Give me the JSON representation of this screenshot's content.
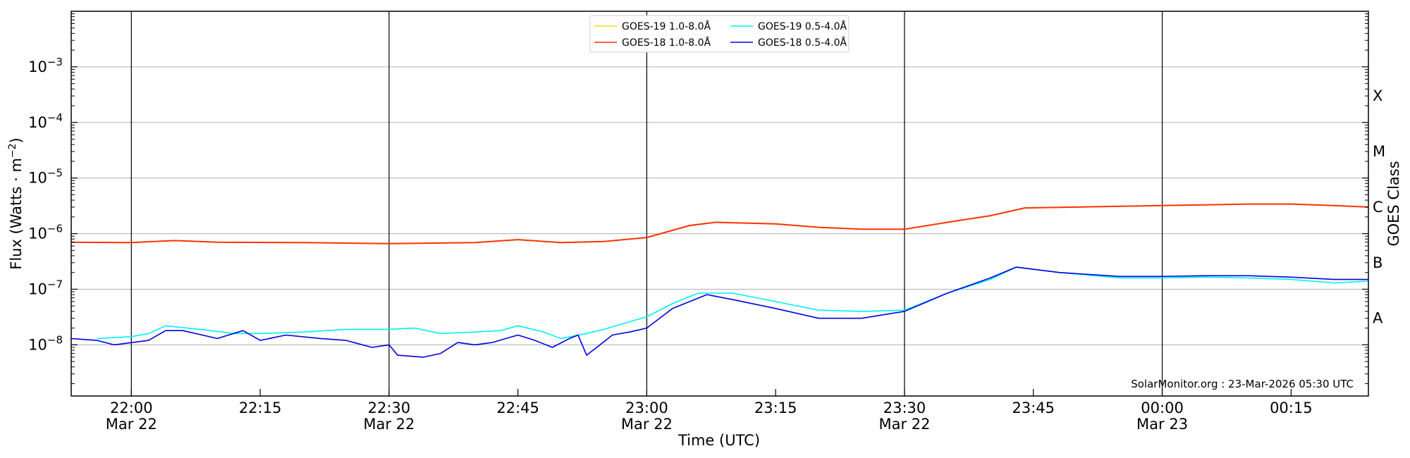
{
  "chart_data": {
    "type": "line",
    "xlabel": "Time (UTC)",
    "ylabel_main": "Flux (Watts · m",
    "ylabel_exp": "−2",
    "ylabel_close": ")",
    "y2label": "GOES Class",
    "yscale": "log",
    "ylim": [
      1.2e-09,
      0.01
    ],
    "xlim": [
      "2026-03-22T21:53",
      "2026-03-23T00:24"
    ],
    "y_ticks": [
      {
        "value": 1e-08,
        "base": "10",
        "exp": "−8"
      },
      {
        "value": 1e-07,
        "base": "10",
        "exp": "−7"
      },
      {
        "value": 1e-06,
        "base": "10",
        "exp": "−6"
      },
      {
        "value": 1e-05,
        "base": "10",
        "exp": "−5"
      },
      {
        "value": 0.0001,
        "base": "10",
        "exp": "−4"
      },
      {
        "value": 0.001,
        "base": "10",
        "exp": "−3"
      }
    ],
    "x_ticks": [
      {
        "time": "2026-03-22T22:00",
        "label": "22:00",
        "sublabel": "Mar 22",
        "major": true
      },
      {
        "time": "2026-03-22T22:15",
        "label": "22:15",
        "sublabel": "",
        "major": false
      },
      {
        "time": "2026-03-22T22:30",
        "label": "22:30",
        "sublabel": "Mar 22",
        "major": true
      },
      {
        "time": "2026-03-22T22:45",
        "label": "22:45",
        "sublabel": "",
        "major": false
      },
      {
        "time": "2026-03-22T23:00",
        "label": "23:00",
        "sublabel": "Mar 22",
        "major": true
      },
      {
        "time": "2026-03-22T23:15",
        "label": "23:15",
        "sublabel": "",
        "major": false
      },
      {
        "time": "2026-03-22T23:30",
        "label": "23:30",
        "sublabel": "Mar 22",
        "major": true
      },
      {
        "time": "2026-03-22T23:45",
        "label": "23:45",
        "sublabel": "",
        "major": false
      },
      {
        "time": "2026-03-23T00:00",
        "label": "00:00",
        "sublabel": "Mar 23",
        "major": true
      },
      {
        "time": "2026-03-23T00:15",
        "label": "00:15",
        "sublabel": "",
        "major": false
      }
    ],
    "goes_classes": [
      {
        "label": "A",
        "value": 3e-08
      },
      {
        "label": "B",
        "value": 3e-07
      },
      {
        "label": "C",
        "value": 3e-06
      },
      {
        "label": "M",
        "value": 3e-05
      },
      {
        "label": "X",
        "value": 0.0003
      }
    ],
    "grid": true,
    "legend_position": "top-center",
    "credit": "SolarMonitor.org : 23-Mar-2026 05:30 UTC",
    "series": [
      {
        "name": "GOES-19 1.0-8.0Å",
        "color": "#ffd700",
        "x": [
          "2026-03-22T21:53",
          "2026-03-22T22:00",
          "2026-03-22T22:05",
          "2026-03-22T22:10",
          "2026-03-22T22:20",
          "2026-03-22T22:30",
          "2026-03-22T22:40",
          "2026-03-22T22:45",
          "2026-03-22T22:50",
          "2026-03-22T22:55",
          "2026-03-22T23:00",
          "2026-03-22T23:05",
          "2026-03-22T23:08",
          "2026-03-22T23:15",
          "2026-03-22T23:20",
          "2026-03-22T23:25",
          "2026-03-22T23:30",
          "2026-03-22T23:35",
          "2026-03-22T23:40",
          "2026-03-22T23:44",
          "2026-03-22T23:50",
          "2026-03-22T23:55",
          "2026-03-23T00:00",
          "2026-03-23T00:05",
          "2026-03-23T00:10",
          "2026-03-23T00:15",
          "2026-03-23T00:20",
          "2026-03-23T00:24"
        ],
        "values": [
          7e-07,
          6.9e-07,
          7.5e-07,
          7e-07,
          6.9e-07,
          6.6e-07,
          6.9e-07,
          7.8e-07,
          6.9e-07,
          7.2e-07,
          8.5e-07,
          1.4e-06,
          1.6e-06,
          1.5e-06,
          1.3e-06,
          1.2e-06,
          1.2e-06,
          1.6e-06,
          2.1e-06,
          2.9e-06,
          3e-06,
          3.1e-06,
          3.2e-06,
          3.3e-06,
          3.4e-06,
          3.4e-06,
          3.2e-06,
          3e-06
        ]
      },
      {
        "name": "GOES-18 1.0-8.0Å",
        "color": "#ff3300",
        "x": [
          "2026-03-22T21:53",
          "2026-03-22T22:00",
          "2026-03-22T22:05",
          "2026-03-22T22:10",
          "2026-03-22T22:20",
          "2026-03-22T22:30",
          "2026-03-22T22:40",
          "2026-03-22T22:45",
          "2026-03-22T22:50",
          "2026-03-22T22:55",
          "2026-03-22T23:00",
          "2026-03-22T23:05",
          "2026-03-22T23:08",
          "2026-03-22T23:15",
          "2026-03-22T23:20",
          "2026-03-22T23:25",
          "2026-03-22T23:30",
          "2026-03-22T23:35",
          "2026-03-22T23:40",
          "2026-03-22T23:44",
          "2026-03-22T23:50",
          "2026-03-22T23:55",
          "2026-03-23T00:00",
          "2026-03-23T00:05",
          "2026-03-23T00:10",
          "2026-03-23T00:15",
          "2026-03-23T00:20",
          "2026-03-23T00:24"
        ],
        "values": [
          7e-07,
          6.9e-07,
          7.5e-07,
          7e-07,
          6.9e-07,
          6.6e-07,
          6.9e-07,
          7.8e-07,
          6.9e-07,
          7.2e-07,
          8.5e-07,
          1.4e-06,
          1.6e-06,
          1.5e-06,
          1.3e-06,
          1.2e-06,
          1.2e-06,
          1.6e-06,
          2.1e-06,
          2.9e-06,
          3e-06,
          3.1e-06,
          3.2e-06,
          3.3e-06,
          3.4e-06,
          3.4e-06,
          3.2e-06,
          3e-06
        ]
      },
      {
        "name": "GOES-19 0.5-4.0Å",
        "color": "#00f0f0",
        "x": [
          "2026-03-22T21:56",
          "2026-03-22T22:00",
          "2026-03-22T22:02",
          "2026-03-22T22:04",
          "2026-03-22T22:08",
          "2026-03-22T22:12",
          "2026-03-22T22:15",
          "2026-03-22T22:20",
          "2026-03-22T22:25",
          "2026-03-22T22:30",
          "2026-03-22T22:33",
          "2026-03-22T22:36",
          "2026-03-22T22:40",
          "2026-03-22T22:43",
          "2026-03-22T22:45",
          "2026-03-22T22:48",
          "2026-03-22T22:50",
          "2026-03-22T22:53",
          "2026-03-22T22:55",
          "2026-03-22T23:00",
          "2026-03-22T23:03",
          "2026-03-22T23:06",
          "2026-03-22T23:10",
          "2026-03-22T23:15",
          "2026-03-22T23:20",
          "2026-03-22T23:25",
          "2026-03-22T23:30",
          "2026-03-22T23:35",
          "2026-03-22T23:40",
          "2026-03-22T23:43",
          "2026-03-22T23:48",
          "2026-03-22T23:55",
          "2026-03-23T00:00",
          "2026-03-23T00:05",
          "2026-03-23T00:10",
          "2026-03-23T00:15",
          "2026-03-23T00:20",
          "2026-03-23T00:24"
        ],
        "values": [
          1.3e-08,
          1.4e-08,
          1.6e-08,
          2.2e-08,
          1.9e-08,
          1.6e-08,
          1.6e-08,
          1.7e-08,
          1.9e-08,
          1.9e-08,
          2e-08,
          1.6e-08,
          1.7e-08,
          1.8e-08,
          2.2e-08,
          1.7e-08,
          1.3e-08,
          1.6e-08,
          1.9e-08,
          3.2e-08,
          5.5e-08,
          8.5e-08,
          8.5e-08,
          6e-08,
          4.2e-08,
          4e-08,
          4.2e-08,
          8.5e-08,
          1.5e-07,
          2.5e-07,
          2e-07,
          1.6e-07,
          1.6e-07,
          1.65e-07,
          1.6e-07,
          1.5e-07,
          1.3e-07,
          1.4e-07
        ]
      },
      {
        "name": "GOES-18 0.5-4.0Å",
        "color": "#0000dd",
        "x": [
          "2026-03-22T21:53",
          "2026-03-22T21:56",
          "2026-03-22T21:58",
          "2026-03-22T22:02",
          "2026-03-22T22:04",
          "2026-03-22T22:06",
          "2026-03-22T22:10",
          "2026-03-22T22:13",
          "2026-03-22T22:15",
          "2026-03-22T22:18",
          "2026-03-22T22:22",
          "2026-03-22T22:25",
          "2026-03-22T22:28",
          "2026-03-22T22:30",
          "2026-03-22T22:31",
          "2026-03-22T22:34",
          "2026-03-22T22:36",
          "2026-03-22T22:38",
          "2026-03-22T22:40",
          "2026-03-22T22:42",
          "2026-03-22T22:45",
          "2026-03-22T22:47",
          "2026-03-22T22:49",
          "2026-03-22T22:51",
          "2026-03-22T22:52",
          "2026-03-22T22:53",
          "2026-03-22T22:56",
          "2026-03-22T22:58",
          "2026-03-22T23:00",
          "2026-03-22T23:03",
          "2026-03-22T23:07",
          "2026-03-22T23:10",
          "2026-03-22T23:15",
          "2026-03-22T23:20",
          "2026-03-22T23:25",
          "2026-03-22T23:30",
          "2026-03-22T23:35",
          "2026-03-22T23:40",
          "2026-03-22T23:43",
          "2026-03-22T23:48",
          "2026-03-22T23:55",
          "2026-03-23T00:00",
          "2026-03-23T00:05",
          "2026-03-23T00:10",
          "2026-03-23T00:15",
          "2026-03-23T00:20",
          "2026-03-23T00:24"
        ],
        "values": [
          1.3e-08,
          1.2e-08,
          1e-08,
          1.2e-08,
          1.8e-08,
          1.8e-08,
          1.3e-08,
          1.8e-08,
          1.2e-08,
          1.5e-08,
          1.3e-08,
          1.2e-08,
          9e-09,
          1e-08,
          6.5e-09,
          6e-09,
          7e-09,
          1.1e-08,
          1e-08,
          1.1e-08,
          1.5e-08,
          1.2e-08,
          9e-09,
          1.3e-08,
          1.5e-08,
          6.5e-09,
          1.5e-08,
          1.7e-08,
          2e-08,
          4.5e-08,
          8e-08,
          6.5e-08,
          4.5e-08,
          3e-08,
          3e-08,
          4e-08,
          8.5e-08,
          1.6e-07,
          2.5e-07,
          2e-07,
          1.7e-07,
          1.7e-07,
          1.75e-07,
          1.75e-07,
          1.65e-07,
          1.5e-07,
          1.5e-07
        ]
      }
    ]
  }
}
